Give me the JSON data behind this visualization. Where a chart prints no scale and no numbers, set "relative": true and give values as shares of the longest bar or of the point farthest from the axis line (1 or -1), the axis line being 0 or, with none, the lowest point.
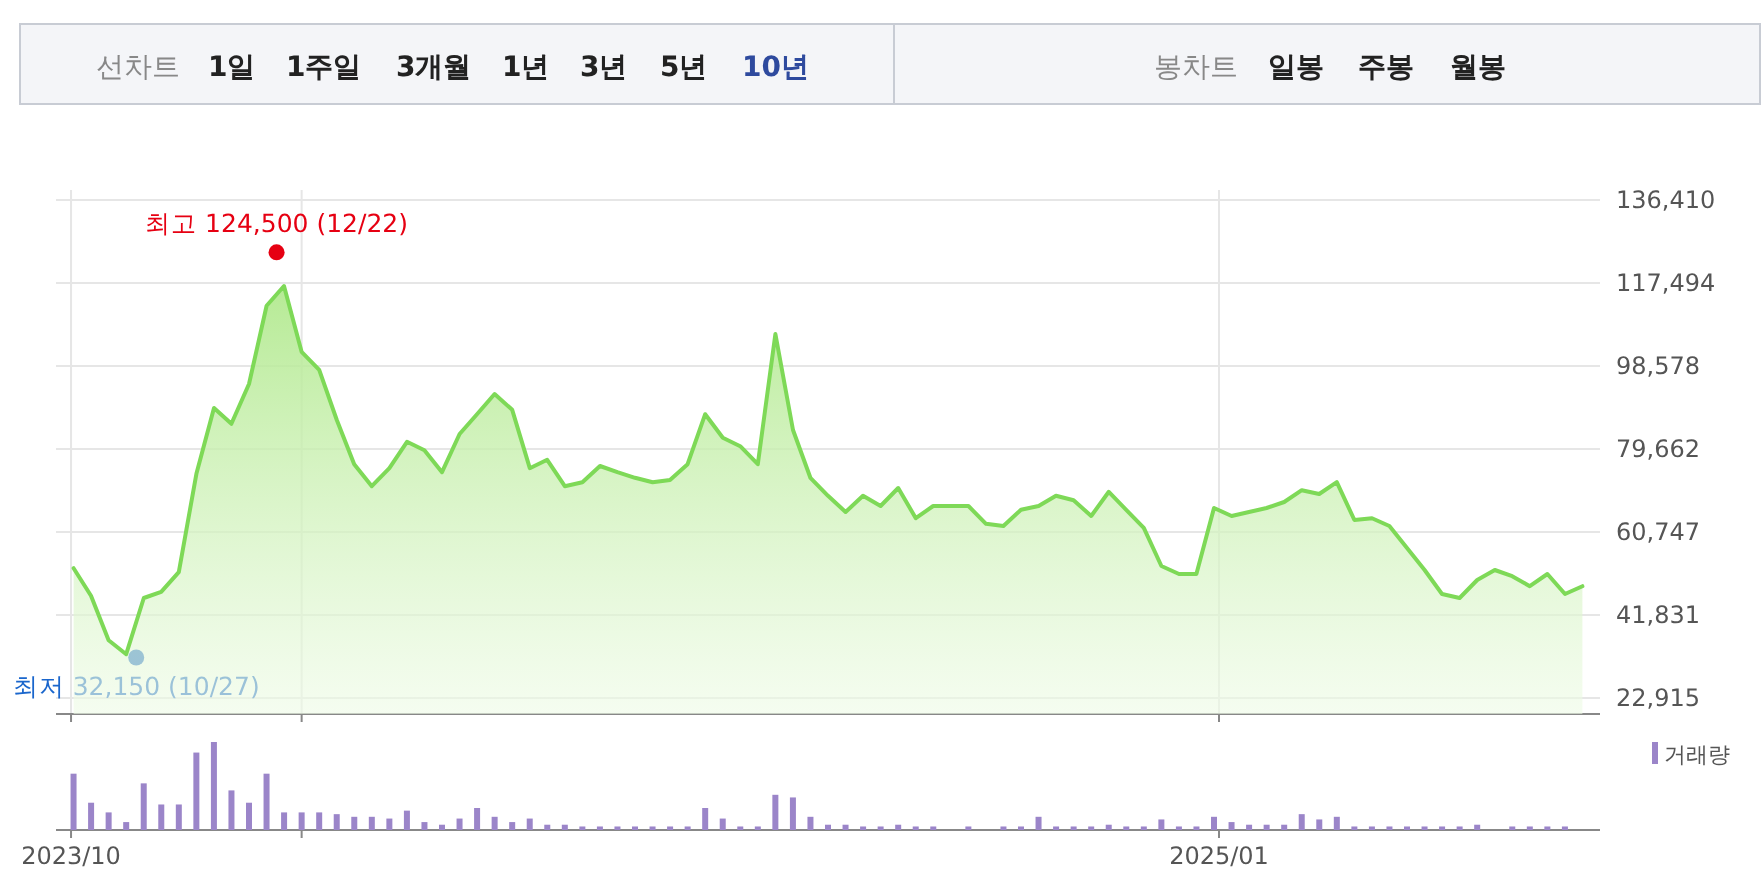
{
  "chart_data": [
    {
      "type": "other",
      "annotations": [
        "선차트",
        "1일",
        "1주일",
        "3개월",
        "1년",
        "3년",
        "5년",
        "10년",
        "봉차트",
        "일봉",
        "주봉",
        "월봉"
      ]
    },
    {
      "type": "area",
      "tick_labels": "y",
      "grid": true,
      "xlim": [
        "2023-09-25",
        "2025-06-02"
      ],
      "xticks": [
        {
          "value": "2023-10-01",
          "label": null
        },
        {
          "value": "2024-01-01",
          "label": null
        },
        {
          "value": "2025-01-01",
          "label": null
        }
      ],
      "ylim": [
        19270,
        138700
      ],
      "yticks": [
        {
          "value": 22915,
          "label": "22,915"
        },
        {
          "value": 41831,
          "label": "41,831"
        },
        {
          "value": 60747,
          "label": "60,747"
        },
        {
          "value": 79662,
          "label": "79,662"
        },
        {
          "value": 98578,
          "label": "98,578"
        },
        {
          "value": 117494,
          "label": "117,494"
        },
        {
          "value": 136410,
          "label": "136,410"
        }
      ],
      "x": [
        "2023-10-02",
        "2023-10-09",
        "2023-10-16",
        "2023-10-23",
        "2023-10-30",
        "2023-11-06",
        "2023-11-13",
        "2023-11-20",
        "2023-11-27",
        "2023-12-04",
        "2023-12-11",
        "2023-12-18",
        "2023-12-25",
        "2024-01-01",
        "2024-01-08",
        "2024-01-15",
        "2024-01-22",
        "2024-01-29",
        "2024-02-05",
        "2024-02-12",
        "2024-02-19",
        "2024-02-26",
        "2024-03-04",
        "2024-03-11",
        "2024-03-18",
        "2024-03-25",
        "2024-04-01",
        "2024-04-08",
        "2024-04-15",
        "2024-04-22",
        "2024-04-29",
        "2024-05-06",
        "2024-05-13",
        "2024-05-20",
        "2024-05-27",
        "2024-06-03",
        "2024-06-10",
        "2024-06-17",
        "2024-06-24",
        "2024-07-01",
        "2024-07-08",
        "2024-07-15",
        "2024-07-22",
        "2024-07-29",
        "2024-08-05",
        "2024-08-12",
        "2024-08-19",
        "2024-08-26",
        "2024-09-02",
        "2024-09-09",
        "2024-09-16",
        "2024-09-23",
        "2024-09-30",
        "2024-10-07",
        "2024-10-14",
        "2024-10-21",
        "2024-10-28",
        "2024-11-04",
        "2024-11-11",
        "2024-11-18",
        "2024-11-25",
        "2024-12-02",
        "2024-12-09",
        "2024-12-16",
        "2024-12-23",
        "2024-12-30",
        "2025-01-06",
        "2025-01-13",
        "2025-01-20",
        "2025-01-27",
        "2025-02-03",
        "2025-02-10",
        "2025-02-17",
        "2025-02-24",
        "2025-03-03",
        "2025-03-10",
        "2025-03-17",
        "2025-03-24",
        "2025-03-31",
        "2025-04-07",
        "2025-04-14",
        "2025-04-21",
        "2025-04-28",
        "2025-05-05",
        "2025-05-12",
        "2025-05-19",
        "2025-05-26"
      ],
      "series": [
        {
          "type": "scatter",
          "x": [
            "2023-12-22",
            "2023-10-27"
          ],
          "values": [
            124500,
            32150
          ],
          "colors": [
            "#e60012",
            "#1a66cc"
          ],
          "value_labels": [
            "최고 124,500 (12/22)",
            "최저 32,150 (10/27)"
          ]
        },
        {
          "color": "#7ed957",
          "values": [
            52500,
            46200,
            36100,
            32900,
            45700,
            47100,
            51600,
            74000,
            89000,
            85400,
            94500,
            112300,
            116800,
            101800,
            97700,
            86300,
            76200,
            71200,
            75300,
            81300,
            79400,
            74400,
            83100,
            87600,
            92200,
            88600,
            75300,
            77200,
            71200,
            72100,
            75800,
            74400,
            73100,
            72100,
            72600,
            76200,
            87600,
            82200,
            80300,
            76200,
            105900,
            84000,
            73100,
            69000,
            65300,
            69000,
            66700,
            70800,
            63900,
            66700,
            66700,
            66700,
            62600,
            62100,
            65800,
            66700,
            69000,
            68000,
            64400,
            69900,
            65800,
            61700,
            53000,
            51200,
            51200,
            66200,
            64400,
            65300,
            66200,
            67600,
            70300,
            69400,
            72100,
            63500,
            63900,
            62100,
            57100,
            52100,
            46600,
            45700,
            49800,
            52100,
            50700,
            48400,
            51200,
            46600,
            48400
          ]
        }
      ]
    },
    {
      "type": "bar",
      "relative": true,
      "tick_labels": "x",
      "legend": "top right",
      "xlim": [
        "2023-09-25",
        "2025-06-02"
      ],
      "xticks": [
        {
          "value": "2023-10-01",
          "label": "2023/10"
        },
        {
          "value": "2024-01-01",
          "label": null
        },
        {
          "value": "2025-01-01",
          "label": "2025/01"
        }
      ],
      "x": [
        "2023-10-02",
        "2023-10-09",
        "2023-10-16",
        "2023-10-23",
        "2023-10-30",
        "2023-11-06",
        "2023-11-13",
        "2023-11-20",
        "2023-11-27",
        "2023-12-04",
        "2023-12-11",
        "2023-12-18",
        "2023-12-25",
        "2024-01-01",
        "2024-01-08",
        "2024-01-15",
        "2024-01-22",
        "2024-01-29",
        "2024-02-05",
        "2024-02-12",
        "2024-02-19",
        "2024-02-26",
        "2024-03-04",
        "2024-03-11",
        "2024-03-18",
        "2024-03-25",
        "2024-04-01",
        "2024-04-08",
        "2024-04-15",
        "2024-04-22",
        "2024-04-29",
        "2024-05-06",
        "2024-05-13",
        "2024-05-20",
        "2024-05-27",
        "2024-06-03",
        "2024-06-10",
        "2024-06-17",
        "2024-06-24",
        "2024-07-01",
        "2024-07-08",
        "2024-07-15",
        "2024-07-22",
        "2024-07-29",
        "2024-08-05",
        "2024-08-12",
        "2024-08-19",
        "2024-08-26",
        "2024-09-02",
        "2024-09-09",
        "2024-09-16",
        "2024-09-23",
        "2024-09-30",
        "2024-10-07",
        "2024-10-14",
        "2024-10-21",
        "2024-10-28",
        "2024-11-04",
        "2024-11-11",
        "2024-11-18",
        "2024-11-25",
        "2024-12-02",
        "2024-12-09",
        "2024-12-16",
        "2024-12-23",
        "2024-12-30",
        "2025-01-06",
        "2025-01-13",
        "2025-01-20",
        "2025-01-27",
        "2025-02-03",
        "2025-02-10",
        "2025-02-17",
        "2025-02-24",
        "2025-03-03",
        "2025-03-10",
        "2025-03-17",
        "2025-03-24",
        "2025-03-31",
        "2025-04-07",
        "2025-04-14",
        "2025-04-21",
        "2025-04-28",
        "2025-05-05",
        "2025-05-12",
        "2025-05-19"
      ],
      "series": [
        {
          "name": "거래량",
          "color": "#9b85c9",
          "values": [
            0.64,
            0.31,
            0.2,
            0.09,
            0.53,
            0.29,
            0.29,
            0.88,
            1,
            0.45,
            0.31,
            0.64,
            0.2,
            0.2,
            0.2,
            0.18,
            0.15,
            0.15,
            0.13,
            0.22,
            0.09,
            0.06,
            0.13,
            0.25,
            0.15,
            0.09,
            0.13,
            0.06,
            0.06,
            0.04,
            0.04,
            0.04,
            0.04,
            0.04,
            0.04,
            0.04,
            0.25,
            0.13,
            0.04,
            0.04,
            0.4,
            0.37,
            0.15,
            0.06,
            0.06,
            0.04,
            0.04,
            0.06,
            0.04,
            0.04,
            null,
            0.04,
            null,
            0.04,
            0.04,
            0.15,
            0.04,
            0.04,
            0.04,
            0.06,
            0.04,
            0.04,
            0.12,
            0.04,
            0.04,
            0.15,
            0.09,
            0.06,
            0.06,
            0.06,
            0.18,
            0.12,
            0.15,
            0.04,
            0.04,
            0.04,
            0.04,
            0.04,
            0.04,
            0.04,
            0.06,
            null,
            0.04,
            0.04,
            0.04,
            0.04
          ]
        }
      ]
    }
  ]
}
